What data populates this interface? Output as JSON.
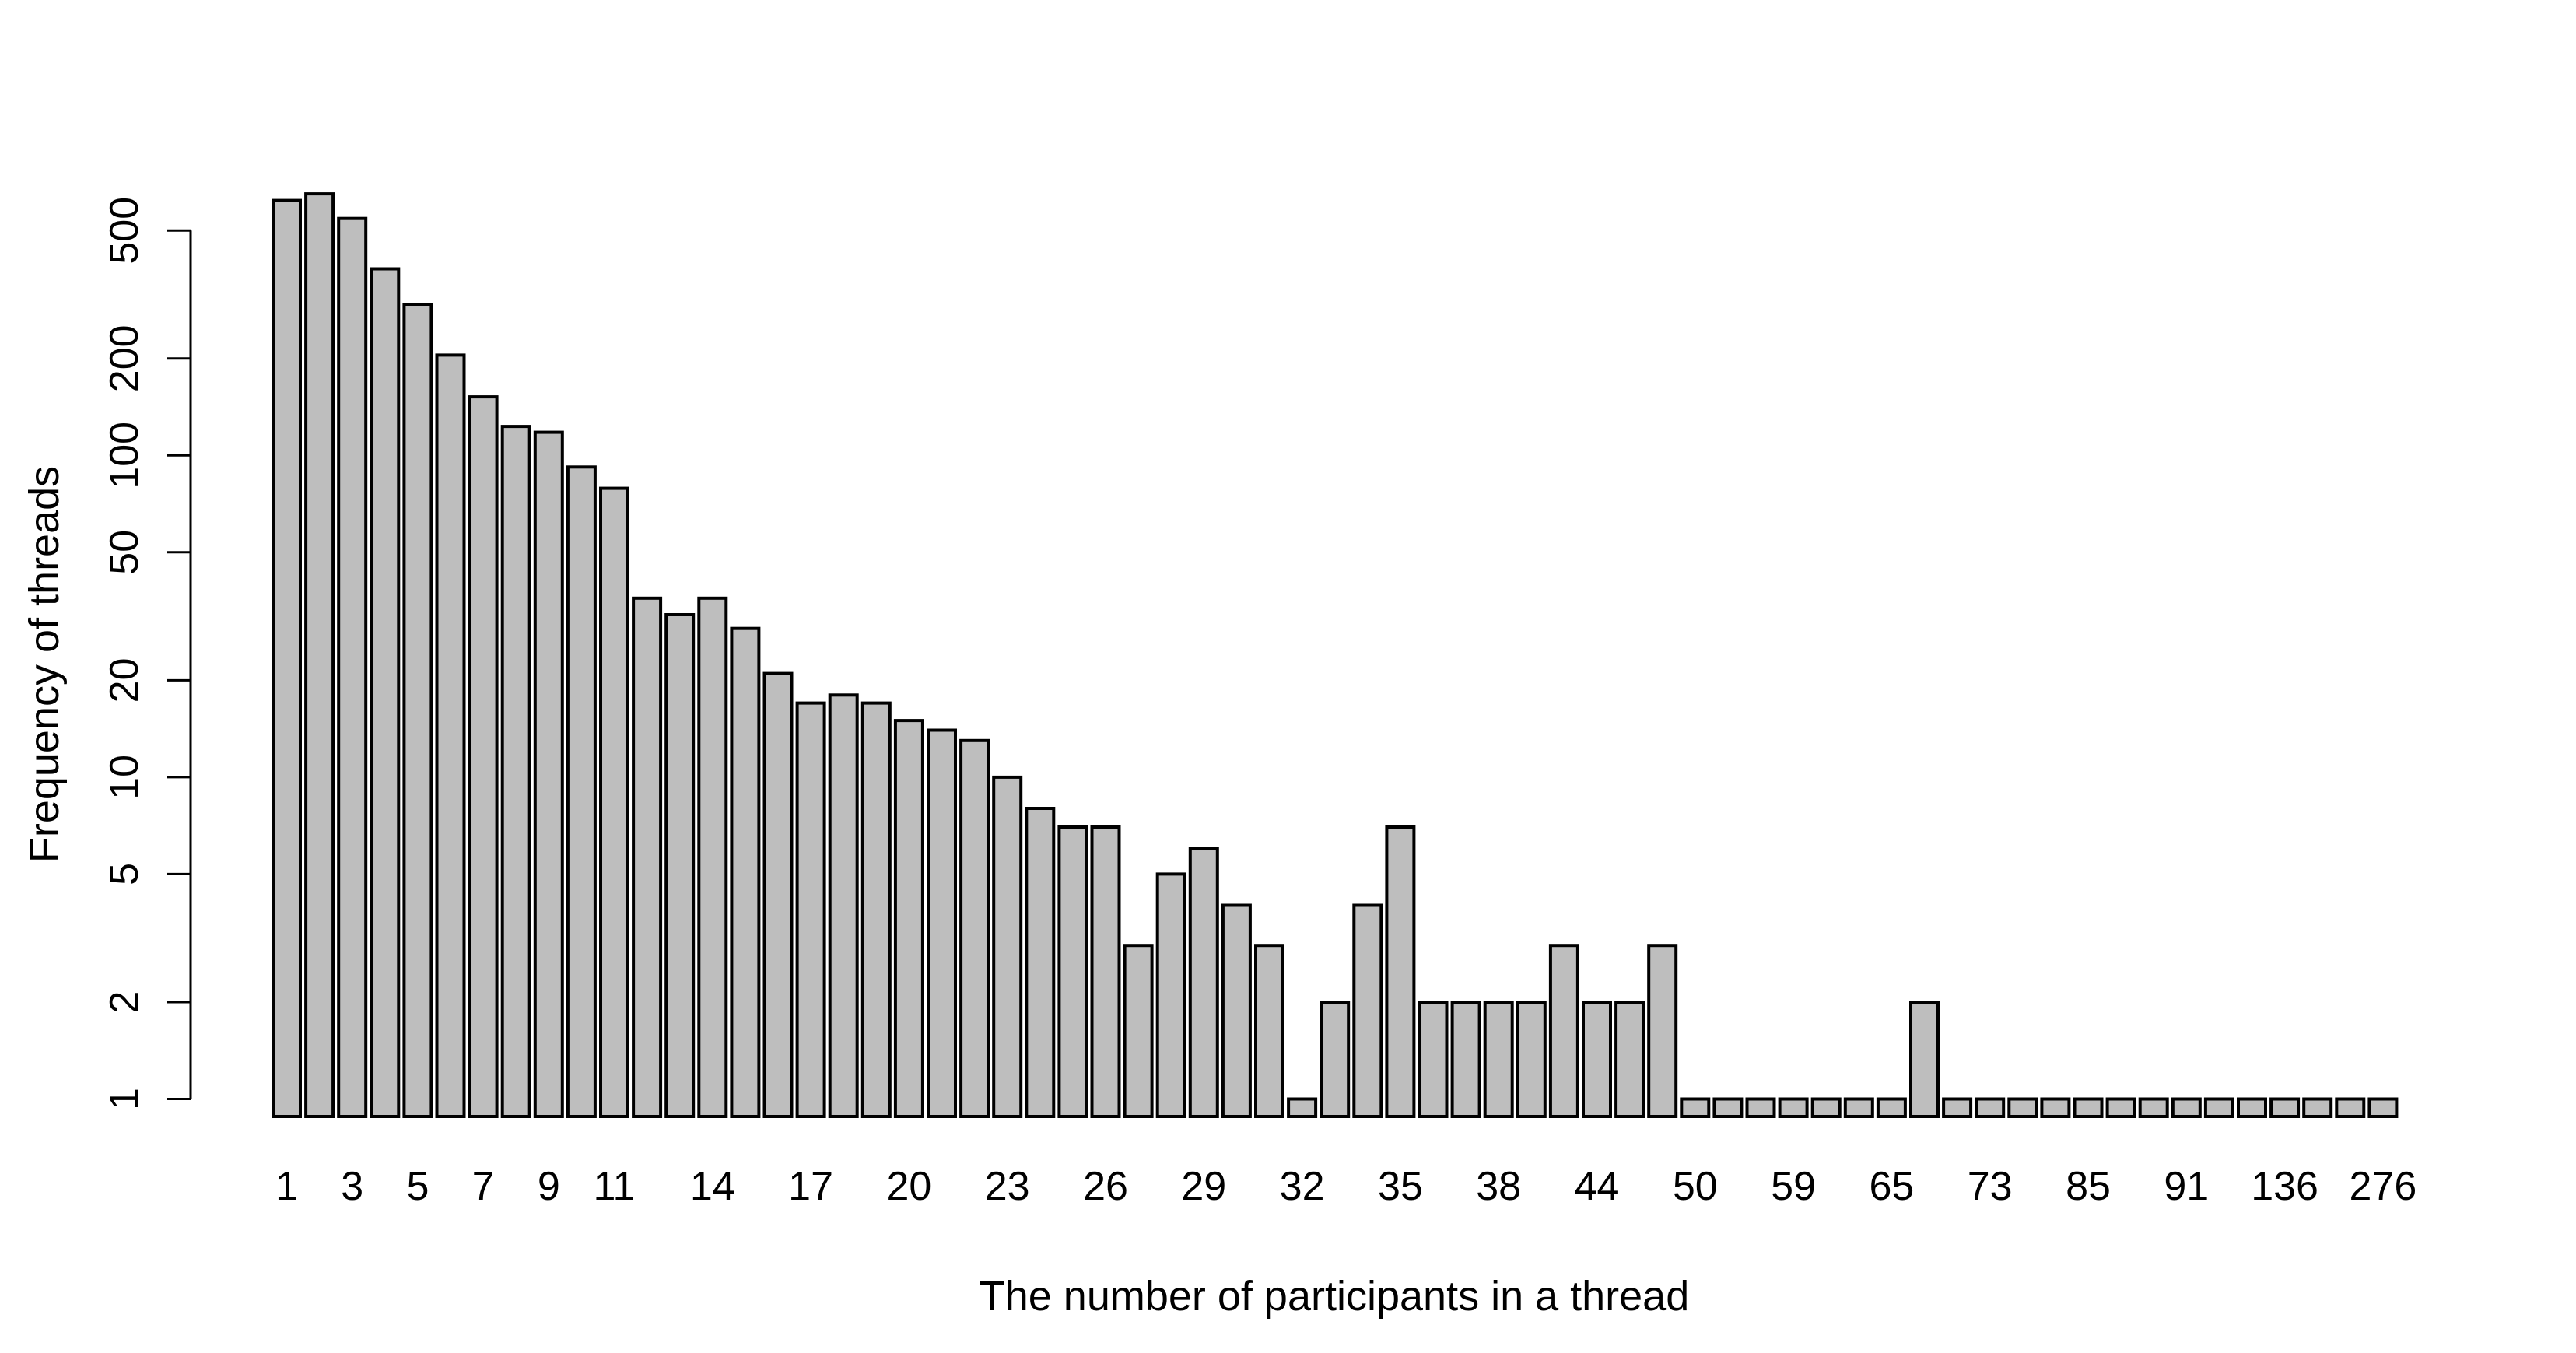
{
  "figure": {
    "background_color": "#ffffff",
    "bar_fill_color": "#bebebe",
    "bar_stroke_color": "#000000",
    "axis_color": "#000000",
    "text_color": "#000000"
  },
  "chart_data": {
    "type": "bar",
    "title": "",
    "xlabel": "The number of participants in a thread",
    "ylabel": "Frequency of threads",
    "y_scale": "log",
    "ylim": [
      1,
      500
    ],
    "grid": "off",
    "legend": "none",
    "y_tick_labels": [
      "1",
      "2",
      "5",
      "10",
      "20",
      "50",
      "100",
      "200",
      "500"
    ],
    "x_tick_labels_shown": [
      "1",
      "3",
      "5",
      "7",
      "9",
      "11",
      "14",
      "17",
      "20",
      "23",
      "26",
      "29",
      "32",
      "35",
      "38",
      "44",
      "50",
      "59",
      "65",
      "73",
      "85",
      "91",
      "136",
      "276"
    ],
    "bars": [
      {
        "label": "1",
        "freq": 620
      },
      {
        "label": "",
        "freq": 650
      },
      {
        "label": "3",
        "freq": 545
      },
      {
        "label": "",
        "freq": 380
      },
      {
        "label": "5",
        "freq": 295
      },
      {
        "label": "",
        "freq": 205
      },
      {
        "label": "7",
        "freq": 152
      },
      {
        "label": "",
        "freq": 123
      },
      {
        "label": "9",
        "freq": 118
      },
      {
        "label": "",
        "freq": 92
      },
      {
        "label": "11",
        "freq": 79
      },
      {
        "label": "",
        "freq": 36
      },
      {
        "label": "",
        "freq": 32
      },
      {
        "label": "14",
        "freq": 36
      },
      {
        "label": "",
        "freq": 29
      },
      {
        "label": "",
        "freq": 21
      },
      {
        "label": "17",
        "freq": 17
      },
      {
        "label": "",
        "freq": 18
      },
      {
        "label": "",
        "freq": 17
      },
      {
        "label": "20",
        "freq": 15
      },
      {
        "label": "",
        "freq": 14
      },
      {
        "label": "",
        "freq": 13
      },
      {
        "label": "23",
        "freq": 10
      },
      {
        "label": "",
        "freq": 8
      },
      {
        "label": "",
        "freq": 7
      },
      {
        "label": "26",
        "freq": 7
      },
      {
        "label": "",
        "freq": 3
      },
      {
        "label": "",
        "freq": 5
      },
      {
        "label": "29",
        "freq": 6
      },
      {
        "label": "",
        "freq": 4
      },
      {
        "label": "",
        "freq": 3
      },
      {
        "label": "32",
        "freq": 1
      },
      {
        "label": "",
        "freq": 2
      },
      {
        "label": "",
        "freq": 4
      },
      {
        "label": "35",
        "freq": 7
      },
      {
        "label": "",
        "freq": 2
      },
      {
        "label": "",
        "freq": 2
      },
      {
        "label": "38",
        "freq": 2
      },
      {
        "label": "",
        "freq": 2
      },
      {
        "label": "",
        "freq": 3
      },
      {
        "label": "44",
        "freq": 2
      },
      {
        "label": "",
        "freq": 2
      },
      {
        "label": "",
        "freq": 3
      },
      {
        "label": "50",
        "freq": 1
      },
      {
        "label": "",
        "freq": 1
      },
      {
        "label": "",
        "freq": 1
      },
      {
        "label": "59",
        "freq": 1
      },
      {
        "label": "",
        "freq": 1
      },
      {
        "label": "",
        "freq": 1
      },
      {
        "label": "65",
        "freq": 1
      },
      {
        "label": "",
        "freq": 2
      },
      {
        "label": "",
        "freq": 1
      },
      {
        "label": "73",
        "freq": 1
      },
      {
        "label": "",
        "freq": 1
      },
      {
        "label": "",
        "freq": 1
      },
      {
        "label": "85",
        "freq": 1
      },
      {
        "label": "",
        "freq": 1
      },
      {
        "label": "",
        "freq": 1
      },
      {
        "label": "91",
        "freq": 1
      },
      {
        "label": "",
        "freq": 1
      },
      {
        "label": "",
        "freq": 1
      },
      {
        "label": "136",
        "freq": 1
      },
      {
        "label": "",
        "freq": 1
      },
      {
        "label": "",
        "freq": 1
      },
      {
        "label": "276",
        "freq": 1
      }
    ]
  }
}
